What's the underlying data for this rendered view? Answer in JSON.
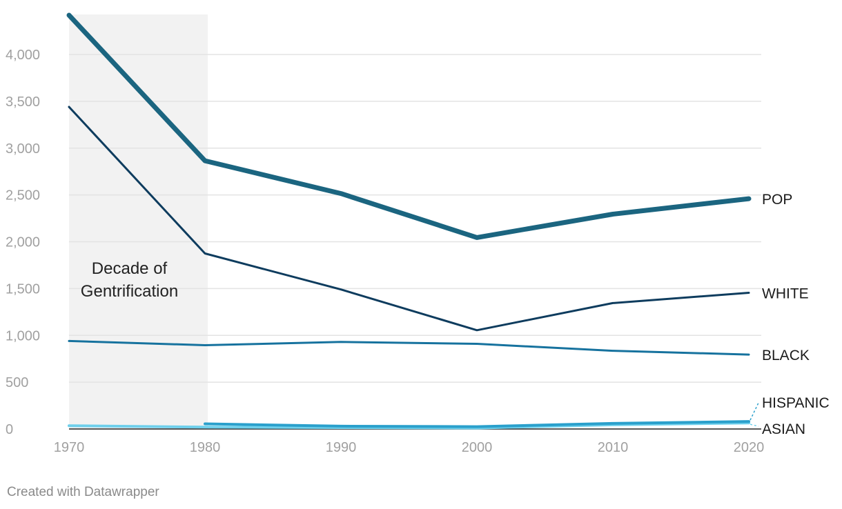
{
  "chart_data": {
    "type": "line",
    "x": [
      1970,
      1980,
      1990,
      2000,
      2010,
      2020
    ],
    "ylim": [
      0,
      4400
    ],
    "yticks": [
      0,
      500,
      1000,
      1500,
      2000,
      2500,
      3000,
      3500,
      4000
    ],
    "ytick_labels": [
      "0",
      "500",
      "1,000",
      "1,500",
      "2,000",
      "2,500",
      "3,000",
      "3,500",
      "4,000"
    ],
    "xtick_labels": [
      "1970",
      "1980",
      "1990",
      "2000",
      "2010",
      "2020"
    ],
    "grid": true,
    "series": [
      {
        "name": "POP",
        "values": [
          4420,
          2865,
          2515,
          2045,
          2295,
          2460
        ],
        "color": "#1b6580"
      },
      {
        "name": "WHITE",
        "values": [
          3440,
          1875,
          1490,
          1055,
          1345,
          1455
        ],
        "color": "#0e3c5e"
      },
      {
        "name": "BLACK",
        "values": [
          940,
          895,
          930,
          910,
          835,
          795
        ],
        "color": "#16729e"
      },
      {
        "name": "HISPANIC",
        "values": [
          null,
          55,
          30,
          25,
          60,
          80
        ],
        "color": "#2aa0cc"
      },
      {
        "name": "ASIAN",
        "values": [
          35,
          20,
          15,
          10,
          45,
          65
        ],
        "color": "#6fd0ec"
      }
    ],
    "annotation": {
      "lines": [
        "Decade of",
        "Gentrification"
      ],
      "range": [
        1970,
        1980
      ],
      "shade_color": "#f2f2f2"
    },
    "title": "",
    "xlabel": "",
    "ylabel": ""
  },
  "footer": {
    "credit": "Created with Datawrapper"
  }
}
